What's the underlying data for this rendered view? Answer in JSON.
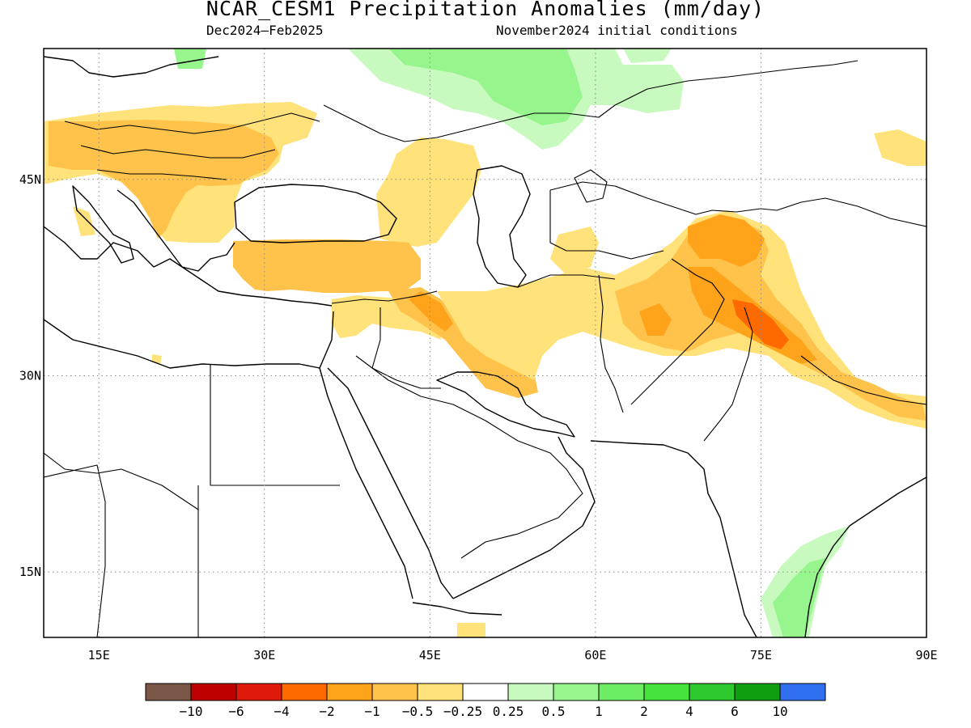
{
  "header": {
    "title": "NCAR_CESM1 Precipitation Anomalies (mm/day)",
    "subtitle_left": "Dec2024–Feb2025",
    "subtitle_right": "November2024 initial conditions"
  },
  "map": {
    "lon_range": [
      10,
      90
    ],
    "lat_range": [
      10,
      55
    ],
    "lon_ticks": [
      {
        "value": 15,
        "label": "15E"
      },
      {
        "value": 30,
        "label": "30E"
      },
      {
        "value": 45,
        "label": "45E"
      },
      {
        "value": 60,
        "label": "60E"
      },
      {
        "value": 75,
        "label": "75E"
      },
      {
        "value": 90,
        "label": "90E"
      }
    ],
    "lat_ticks": [
      {
        "value": 45,
        "label": "45N"
      },
      {
        "value": 30,
        "label": "30N"
      },
      {
        "value": 15,
        "label": "15N"
      }
    ]
  },
  "colorbar": {
    "colors": [
      "#7a5646",
      "#bd0000",
      "#e01a0a",
      "#ff6a00",
      "#ffa31a",
      "#ffc24a",
      "#ffe27a",
      "#ffffff",
      "#c8fac0",
      "#96f58c",
      "#6ded64",
      "#46e33e",
      "#2ec92e",
      "#0f9e0f",
      "#2f6ff0"
    ],
    "labels": [
      "−10",
      "−6",
      "−4",
      "−2",
      "−1",
      "−0.5",
      "−0.25",
      "0.25",
      "0.5",
      "1",
      "2",
      "4",
      "6",
      "10"
    ]
  }
}
